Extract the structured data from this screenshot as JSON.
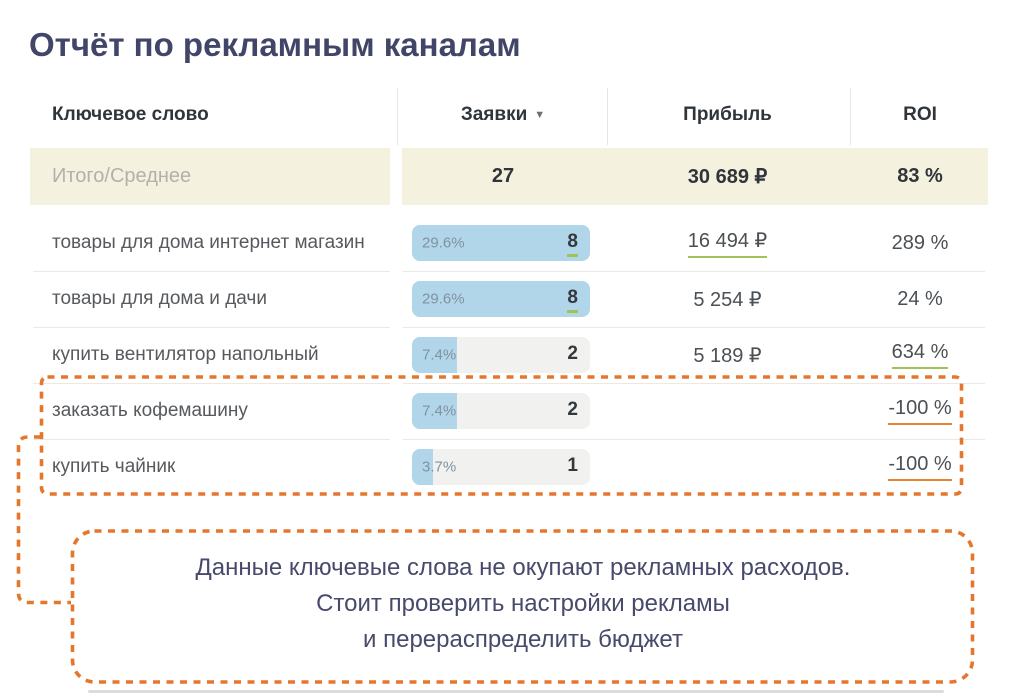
{
  "title": "Отчёт по рекламным каналам",
  "table": {
    "columns": {
      "keyword": "Ключевое слово",
      "leads": "Заявки",
      "profit": "Прибыль",
      "roi": "ROI"
    },
    "sort_icon": "▼",
    "total": {
      "label": "Итого/Среднее",
      "leads": "27",
      "profit": "30 689 ₽",
      "roi": "83 %"
    },
    "rows": [
      {
        "keyword": "товары для дома интернет магазин",
        "share": "29.6%",
        "fill_pct": 100,
        "leads": "8",
        "profit": "16 494 ₽",
        "roi": "289 %"
      },
      {
        "keyword": "товары для дома и дачи",
        "share": "29.6%",
        "fill_pct": 100,
        "leads": "8",
        "profit": "5 254 ₽",
        "roi": "24 %"
      },
      {
        "keyword": "купить вентилятор напольный",
        "share": "7.4%",
        "fill_pct": 25,
        "leads": "2",
        "profit": "5 189 ₽",
        "roi": "634 %"
      },
      {
        "keyword": "заказать кофемашину",
        "share": "7.4%",
        "fill_pct": 25,
        "leads": "2",
        "profit": "",
        "roi": "-100 %"
      },
      {
        "keyword": "купить чайник",
        "share": "3.7%",
        "fill_pct": 12,
        "leads": "1",
        "profit": "",
        "roi": "-100 %"
      }
    ]
  },
  "callout": {
    "lines": [
      "Данные ключевые слова не окупают рекламных расходов.",
      "Стоит проверить настройки рекламы",
      "и перераспределить бюджет"
    ]
  },
  "colors": {
    "accent_orange": "#E5772D",
    "bar_blue": "#B1D6E9",
    "bar_track": "#F1F1EF",
    "total_row_bg": "#F4F1DF",
    "underline_green": "#9FC455",
    "underline_orange": "#E8822E",
    "title_navy": "#414568"
  }
}
